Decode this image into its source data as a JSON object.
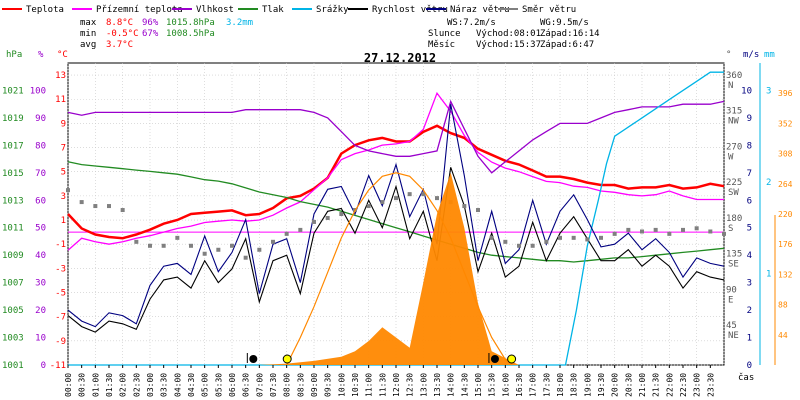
{
  "legend": [
    {
      "label": "Teplota",
      "color": "#ff0000"
    },
    {
      "label": "Přízemní teplota",
      "color": "#ff00ff"
    },
    {
      "label": "Vlhkost",
      "color": "#9900cc"
    },
    {
      "label": "Tlak",
      "color": "#228b22"
    },
    {
      "label": "Srážky",
      "color": "#00b4e6"
    },
    {
      "label": "Rychlost větru",
      "color": "#000000"
    },
    {
      "label": "Náraz větru",
      "color": "#000080"
    },
    {
      "label": "Směr větru",
      "color": "#808080"
    }
  ],
  "stats": {
    "max": {
      "label": "max",
      "temp": "8.8°C",
      "hum": "96%",
      "press": "1015.8hPa",
      "rain": "3.2mm"
    },
    "min": {
      "label": "min",
      "temp": "-0.5°C",
      "hum": "67%",
      "press": "1008.5hPa"
    },
    "avg": {
      "label": "avg",
      "temp": "3.7°C"
    },
    "ws": "WS:7.2m/s",
    "wg": "WG:9.5m/s",
    "sun": {
      "label": "Slunce",
      "rise": "Východ:08:01",
      "set": "Západ:16:14"
    },
    "moon": {
      "label": "Měsíc",
      "rise": "Východ:15:37",
      "set": "Západ:6:47"
    }
  },
  "chart_data": {
    "type": "line",
    "title": "27.12.2012",
    "xlabel": "čas",
    "x_ticks": [
      "00:00",
      "00:30",
      "01:00",
      "01:30",
      "02:00",
      "02:30",
      "03:00",
      "03:30",
      "04:00",
      "04:30",
      "05:00",
      "05:30",
      "06:00",
      "06:30",
      "07:00",
      "07:30",
      "08:00",
      "08:30",
      "09:00",
      "09:30",
      "10:00",
      "10:30",
      "11:00",
      "11:30",
      "12:00",
      "12:30",
      "13:00",
      "13:30",
      "14:00",
      "14:30",
      "15:00",
      "15:30",
      "16:00",
      "16:30",
      "17:00",
      "17:30",
      "18:00",
      "18:30",
      "19:00",
      "19:30",
      "20:00",
      "20:30",
      "21:00",
      "21:30",
      "22:00",
      "22:30",
      "23:00",
      "23:30"
    ],
    "axes": {
      "pressure": {
        "unit": "hPa",
        "range": [
          1001,
          1023
        ],
        "ticks": [
          1001,
          1003,
          1005,
          1007,
          1009,
          1011,
          1013,
          1015,
          1017,
          1019,
          1021
        ]
      },
      "humidity": {
        "unit": "%",
        "range": [
          0,
          110
        ],
        "ticks": [
          0,
          10,
          20,
          30,
          40,
          50,
          60,
          70,
          80,
          90,
          100
        ]
      },
      "temperature": {
        "unit": "°C",
        "range": [
          -11,
          14
        ],
        "ticks": [
          -11,
          -9,
          -7,
          -5,
          -3,
          -1,
          1,
          3,
          5,
          7,
          9,
          11,
          13
        ]
      },
      "wind_direction": {
        "unit": "°",
        "range": [
          0,
          380
        ],
        "ticks": [
          {
            "v": 360,
            "l": "N"
          },
          {
            "v": 315,
            "l": "NW"
          },
          {
            "v": 270,
            "l": "W"
          },
          {
            "v": 225,
            "l": "SW"
          },
          {
            "v": 180,
            "l": "S"
          },
          {
            "v": 135,
            "l": "SE"
          },
          {
            "v": 90,
            "l": "E"
          },
          {
            "v": 45,
            "l": "NE"
          }
        ]
      },
      "wind_speed": {
        "unit": "m/s",
        "range": [
          0,
          11
        ],
        "ticks": [
          0,
          1,
          2,
          3,
          4,
          5,
          6,
          7,
          8,
          9,
          10
        ]
      },
      "rain": {
        "unit": "mm",
        "range": [
          0,
          3.3
        ],
        "ticks": [
          1,
          2,
          3
        ]
      },
      "solar": {
        "range": [
          0,
          440
        ],
        "ticks": [
          44,
          88,
          132,
          176,
          220,
          264,
          308,
          352,
          396
        ]
      }
    },
    "series": [
      {
        "key": "temperature",
        "name": "Teplota",
        "color": "#ff0000",
        "axis": "temperature",
        "x": [
          0,
          0.5,
          1,
          1.5,
          2,
          2.5,
          3,
          3.5,
          4,
          4.5,
          5,
          5.5,
          6,
          6.5,
          7,
          7.5,
          8,
          8.5,
          9,
          9.5,
          10,
          10.5,
          11,
          11.5,
          12,
          12.5,
          13,
          13.5,
          14,
          14.5,
          15,
          15.5,
          16,
          16.5,
          17,
          17.5,
          18,
          18.5,
          19,
          19.5,
          20,
          20.5,
          21,
          21.5,
          22,
          22.5,
          23,
          23.5,
          24
        ],
        "values": [
          1.5,
          0.3,
          -0.2,
          -0.4,
          -0.5,
          -0.2,
          0.2,
          0.7,
          1.0,
          1.5,
          1.6,
          1.7,
          1.8,
          1.4,
          1.5,
          2.0,
          2.8,
          3.0,
          3.6,
          4.5,
          6.5,
          7.2,
          7.6,
          7.8,
          7.5,
          7.5,
          8.3,
          8.8,
          8.2,
          7.8,
          6.9,
          6.4,
          5.9,
          5.6,
          5.1,
          4.6,
          4.6,
          4.4,
          4.1,
          3.9,
          3.9,
          3.6,
          3.7,
          3.7,
          3.9,
          3.6,
          3.7,
          4.0,
          3.8
        ]
      },
      {
        "key": "ground_temperature",
        "name": "Přízemní teplota",
        "color": "#ff00ff",
        "axis": "temperature",
        "x": [
          0,
          0.5,
          1,
          1.5,
          2,
          2.5,
          3,
          3.5,
          4,
          4.5,
          5,
          5.5,
          6,
          6.5,
          7,
          7.5,
          8,
          8.5,
          9,
          9.5,
          10,
          10.5,
          11,
          11.5,
          12,
          12.5,
          13,
          13.5,
          14,
          14.5,
          15,
          15.5,
          16,
          16.5,
          17,
          17.5,
          18,
          18.5,
          19,
          19.5,
          20,
          20.5,
          21,
          21.5,
          22,
          22.5,
          23,
          23.5,
          24
        ],
        "values": [
          -1.5,
          -0.5,
          -0.8,
          -1.0,
          -0.8,
          -0.5,
          -0.3,
          0.0,
          0.3,
          0.5,
          0.8,
          0.9,
          1.0,
          0.9,
          1.0,
          1.4,
          2.0,
          2.5,
          3.5,
          4.5,
          6.0,
          6.5,
          6.8,
          7.2,
          7.3,
          7.5,
          8.5,
          11.5,
          10.0,
          8.0,
          6.6,
          5.8,
          5.3,
          5.0,
          4.6,
          4.2,
          4.1,
          3.8,
          3.7,
          3.4,
          3.3,
          3.1,
          3.0,
          3.1,
          3.4,
          3.0,
          2.7,
          2.7,
          2.7
        ]
      },
      {
        "key": "humidity",
        "name": "Vlhkost",
        "color": "#9900cc",
        "axis": "humidity",
        "x": [
          0,
          0.5,
          1,
          1.5,
          2,
          2.5,
          3,
          3.5,
          4,
          4.5,
          5,
          5.5,
          6,
          6.5,
          7,
          7.5,
          8,
          8.5,
          9,
          9.5,
          10,
          10.5,
          11,
          11.5,
          12,
          12.5,
          13,
          13.5,
          14,
          14.5,
          15,
          15.5,
          16,
          16.5,
          17,
          17.5,
          18,
          18.5,
          19,
          19.5,
          20,
          20.5,
          21,
          21.5,
          22,
          22.5,
          23,
          23.5,
          24
        ],
        "values": [
          92,
          91,
          92,
          92,
          92,
          92,
          92,
          92,
          92,
          92,
          92,
          92,
          92,
          93,
          93,
          93,
          93,
          93,
          92,
          90,
          85,
          80,
          78,
          77,
          76,
          76,
          77,
          78,
          96,
          86,
          76,
          70,
          74,
          78,
          82,
          85,
          88,
          88,
          88,
          90,
          92,
          93,
          94,
          94,
          94,
          95,
          95,
          95,
          96
        ]
      },
      {
        "key": "pressure",
        "name": "Tlak",
        "color": "#228b22",
        "axis": "pressure",
        "x": [
          0,
          0.5,
          1,
          1.5,
          2,
          2.5,
          3,
          3.5,
          4,
          4.5,
          5,
          5.5,
          6,
          6.5,
          7,
          7.5,
          8,
          8.5,
          9,
          9.5,
          10,
          10.5,
          11,
          11.5,
          12,
          12.5,
          13,
          13.5,
          14,
          14.5,
          15,
          15.5,
          16,
          16.5,
          17,
          17.5,
          18,
          18.5,
          19,
          19.5,
          20,
          20.5,
          21,
          21.5,
          22,
          22.5,
          23,
          23.5,
          24
        ],
        "values": [
          1015.8,
          1015.6,
          1015.5,
          1015.4,
          1015.3,
          1015.2,
          1015.1,
          1015.0,
          1014.9,
          1014.7,
          1014.5,
          1014.4,
          1014.2,
          1013.9,
          1013.6,
          1013.4,
          1013.2,
          1012.9,
          1012.7,
          1012.5,
          1012.2,
          1011.9,
          1011.6,
          1011.3,
          1011.0,
          1010.7,
          1010.4,
          1010.1,
          1009.8,
          1009.5,
          1009.2,
          1009.0,
          1008.9,
          1008.8,
          1008.7,
          1008.6,
          1008.6,
          1008.5,
          1008.6,
          1008.7,
          1008.8,
          1008.8,
          1008.9,
          1009.0,
          1009.1,
          1009.2,
          1009.3,
          1009.4,
          1009.5
        ]
      },
      {
        "key": "rain",
        "name": "Srážky",
        "color": "#00b4e6",
        "axis": "rain",
        "x": [
          0,
          18.2,
          18.6,
          19.0,
          19.4,
          19.7,
          20.0,
          20.5,
          21,
          22,
          23,
          23.5,
          24
        ],
        "values": [
          0,
          0,
          0.6,
          1.3,
          1.8,
          2.2,
          2.5,
          2.6,
          2.7,
          2.9,
          3.1,
          3.2,
          3.2
        ]
      },
      {
        "key": "wind_speed",
        "name": "Rychlost větru",
        "color": "#000000",
        "axis": "wind_speed",
        "x": [
          0,
          0.5,
          1,
          1.5,
          2,
          2.5,
          3,
          3.5,
          4,
          4.5,
          5,
          5.5,
          6,
          6.5,
          7,
          7.5,
          8,
          8.5,
          9,
          9.5,
          10,
          10.5,
          11,
          11.5,
          12,
          12.5,
          13,
          13.5,
          14,
          14.5,
          15,
          15.5,
          16,
          16.5,
          17,
          17.5,
          18,
          18.5,
          19,
          19.5,
          20,
          20.5,
          21,
          21.5,
          22,
          22.5,
          23,
          23.5,
          24
        ],
        "values": [
          1.8,
          1.4,
          1.2,
          1.6,
          1.5,
          1.3,
          2.4,
          3.1,
          3.2,
          2.8,
          3.8,
          3.0,
          3.5,
          4.6,
          2.3,
          3.8,
          4.0,
          2.6,
          4.8,
          5.6,
          5.7,
          4.8,
          6.0,
          5.0,
          6.5,
          4.6,
          5.6,
          3.8,
          7.2,
          5.8,
          3.4,
          4.8,
          3.2,
          3.6,
          5.2,
          3.8,
          4.8,
          5.4,
          4.6,
          3.8,
          3.8,
          4.2,
          3.6,
          4.0,
          3.6,
          2.8,
          3.4,
          3.2,
          3.1
        ]
      },
      {
        "key": "wind_gust",
        "name": "Náraz větru",
        "color": "#000080",
        "axis": "wind_speed",
        "x": [
          0,
          0.5,
          1,
          1.5,
          2,
          2.5,
          3,
          3.5,
          4,
          4.5,
          5,
          5.5,
          6,
          6.5,
          7,
          7.5,
          8,
          8.5,
          9,
          9.5,
          10,
          10.5,
          11,
          11.5,
          12,
          12.5,
          13,
          13.5,
          14,
          14.5,
          15,
          15.5,
          16,
          16.5,
          17,
          17.5,
          18,
          18.5,
          19,
          19.5,
          20,
          20.5,
          21,
          21.5,
          22,
          22.5,
          23,
          23.5,
          24
        ],
        "values": [
          2.0,
          1.6,
          1.4,
          1.9,
          1.8,
          1.5,
          2.9,
          3.6,
          3.7,
          3.3,
          4.7,
          3.4,
          4.1,
          5.3,
          2.6,
          4.4,
          4.6,
          3.0,
          5.5,
          6.4,
          6.5,
          5.5,
          6.9,
          5.8,
          7.3,
          5.4,
          6.4,
          4.4,
          9.5,
          6.9,
          3.8,
          5.6,
          3.7,
          4.2,
          6.0,
          4.4,
          5.6,
          6.2,
          5.3,
          4.3,
          4.4,
          4.8,
          4.2,
          4.6,
          4.1,
          3.2,
          3.9,
          3.7,
          3.6
        ]
      },
      {
        "key": "wind_direction",
        "name": "Směr větru",
        "color": "#808080",
        "axis": "wind_direction",
        "style": "points",
        "x": [
          0,
          0.5,
          1,
          1.5,
          2,
          2.5,
          3,
          3.5,
          4,
          4.5,
          5,
          5.5,
          6,
          6.5,
          7,
          7.5,
          8,
          8.5,
          9,
          9.5,
          10,
          10.5,
          11,
          11.5,
          12,
          12.5,
          13,
          13.5,
          14,
          14.5,
          15,
          15.5,
          16,
          16.5,
          17,
          17.5,
          18,
          18.5,
          19,
          19.5,
          20,
          20.5,
          21,
          21.5,
          22,
          22.5,
          23,
          23.5,
          24
        ],
        "values": [
          220,
          205,
          200,
          200,
          195,
          155,
          150,
          150,
          160,
          150,
          140,
          145,
          150,
          135,
          145,
          155,
          165,
          170,
          180,
          185,
          190,
          195,
          200,
          205,
          210,
          215,
          215,
          210,
          205,
          200,
          195,
          160,
          155,
          150,
          150,
          155,
          160,
          160,
          158,
          160,
          165,
          170,
          168,
          170,
          165,
          170,
          172,
          168,
          165
        ]
      },
      {
        "key": "solar",
        "name": "",
        "color": "#ff8800",
        "axis": "solar",
        "style": "area",
        "x": [
          0,
          7.0,
          8.0,
          9.0,
          10.0,
          10.5,
          11.0,
          11.5,
          12.0,
          12.5,
          13.0,
          13.5,
          14.0,
          14.5,
          15.0,
          15.5,
          16.5,
          24
        ],
        "values": [
          0,
          0,
          2,
          6,
          12,
          20,
          35,
          55,
          40,
          25,
          120,
          220,
          280,
          200,
          90,
          20,
          0,
          0
        ]
      },
      {
        "key": "solar_theoretical",
        "name": "",
        "color": "#ff8800",
        "axis": "solar",
        "style": "curve",
        "x": [
          8.0,
          8.5,
          9.0,
          9.5,
          10.0,
          10.5,
          11.0,
          11.5,
          12.0,
          12.5,
          13.0,
          13.5,
          14.0,
          14.5,
          15.0,
          15.5,
          16.0,
          16.25
        ],
        "values": [
          0,
          40,
          85,
          135,
          185,
          225,
          255,
          275,
          280,
          275,
          255,
          225,
          185,
          135,
          85,
          40,
          8,
          0
        ]
      }
    ],
    "markers": [
      {
        "type": "moonset",
        "x": 6.78
      },
      {
        "type": "sunrise",
        "x": 8.02
      },
      {
        "type": "moonrise",
        "x": 15.62
      },
      {
        "type": "sunset",
        "x": 16.23
      }
    ],
    "grid": true
  }
}
